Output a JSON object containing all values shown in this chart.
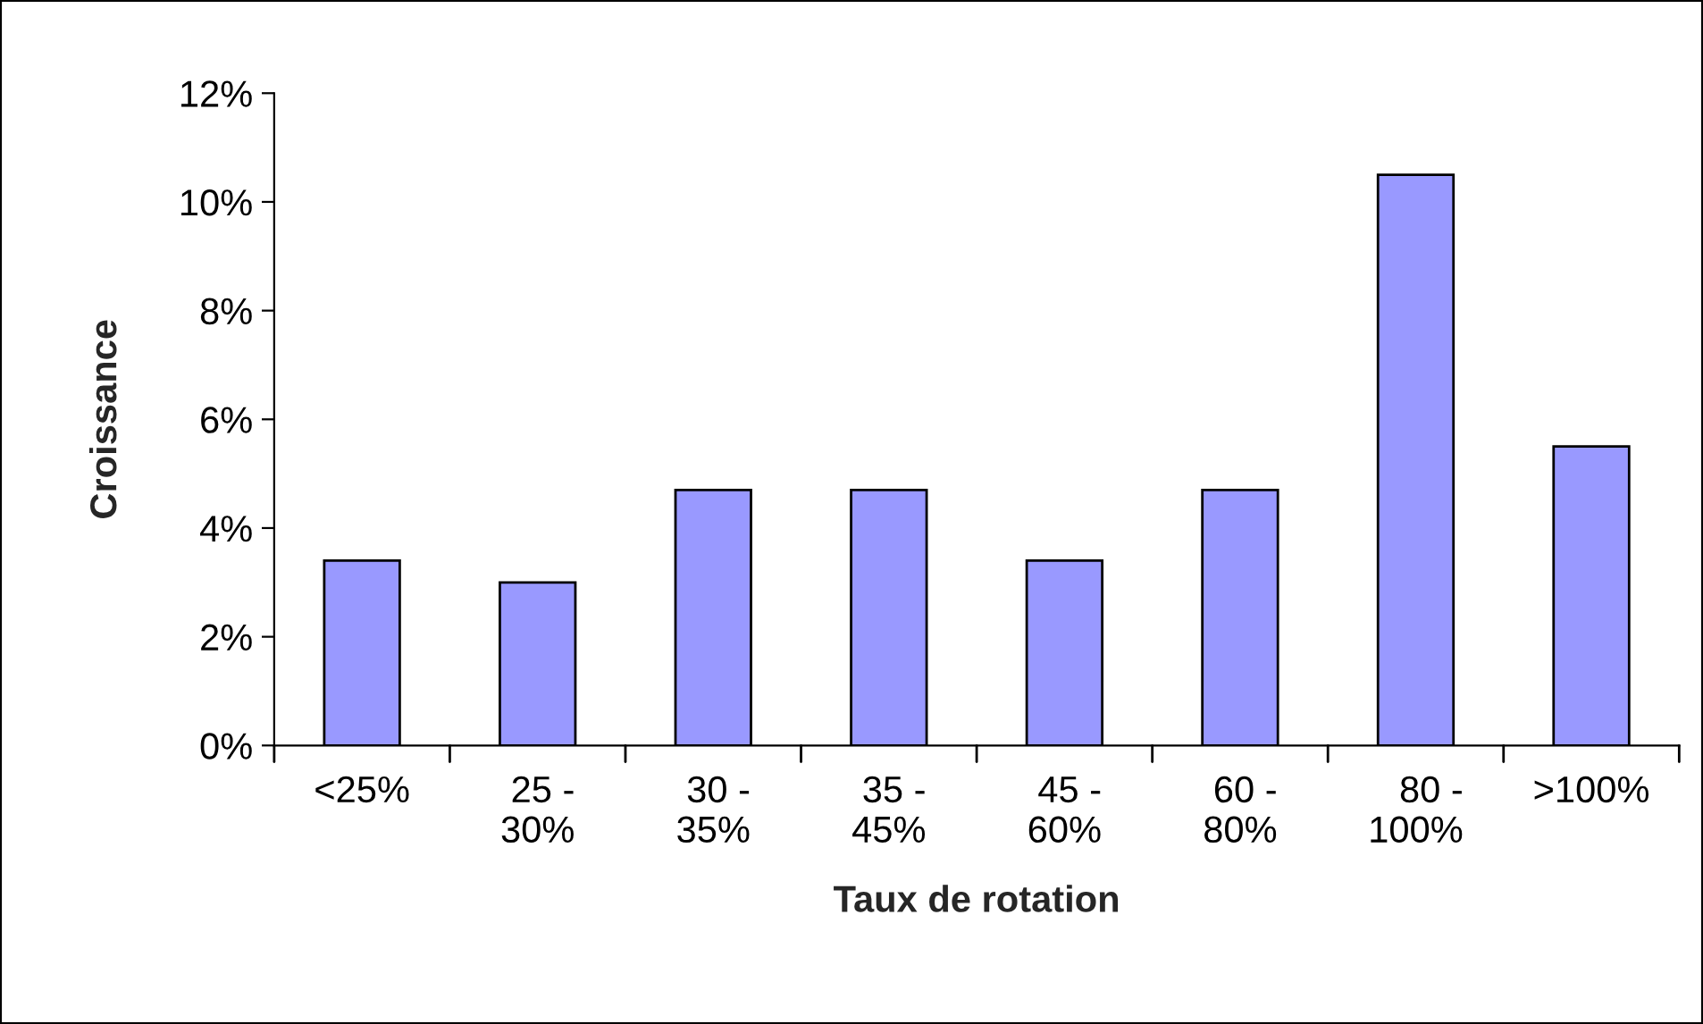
{
  "chart_data": {
    "type": "bar",
    "xlabel": "Taux de rotation",
    "ylabel": "Croissance",
    "categories": [
      "<25%",
      "25 -\n30%",
      "30 -\n35%",
      "35 -\n45%",
      "45 -\n60%",
      "60 -\n80%",
      "80 -\n100%",
      ">100%"
    ],
    "values": [
      3.4,
      3.0,
      4.7,
      4.7,
      3.4,
      4.7,
      10.5,
      5.5
    ],
    "color": "#9999ff",
    "ylim": [
      0,
      12
    ],
    "yticks": [
      {
        "value": 0,
        "label": "0%"
      },
      {
        "value": 2,
        "label": "2%"
      },
      {
        "value": 4,
        "label": "4%"
      },
      {
        "value": 6,
        "label": "6%"
      },
      {
        "value": 8,
        "label": "8%"
      },
      {
        "value": 10,
        "label": "10%"
      },
      {
        "value": 12,
        "label": "12%"
      }
    ],
    "grid": false,
    "legend": false
  }
}
